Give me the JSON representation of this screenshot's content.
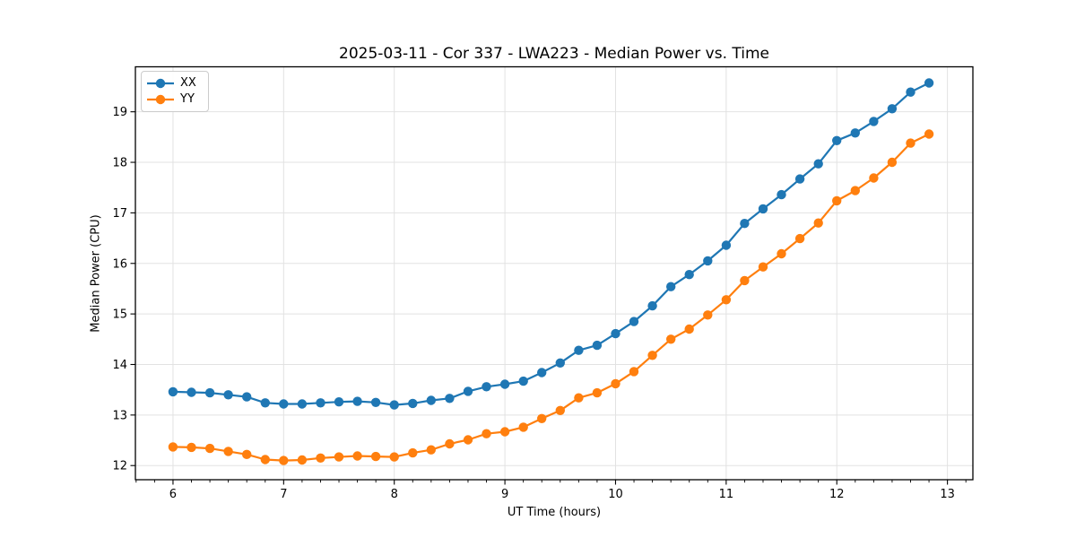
{
  "chart_data": {
    "type": "line",
    "title": "2025-03-11 - Cor 337 - LWA223 - Median Power vs. Time",
    "xlabel": "UT Time (hours)",
    "ylabel": "Median Power (CPU)",
    "xlim": [
      5.66,
      13.23
    ],
    "ylim": [
      11.72,
      19.89
    ],
    "x_ticks": [
      6,
      7,
      8,
      9,
      10,
      11,
      12,
      13
    ],
    "y_ticks": [
      12,
      13,
      14,
      15,
      16,
      17,
      18,
      19
    ],
    "x_minor_divisions_per_unit": 6,
    "grid": true,
    "legend_position": "upper left",
    "legend_labels": [
      "XX",
      "YY"
    ],
    "x": [
      6.0,
      6.1667,
      6.3333,
      6.5,
      6.6667,
      6.8333,
      7.0,
      7.1667,
      7.3333,
      7.5,
      7.6667,
      7.8333,
      8.0,
      8.1667,
      8.3333,
      8.5,
      8.6667,
      8.8333,
      9.0,
      9.1667,
      9.3333,
      9.5,
      9.6667,
      9.8333,
      10.0,
      10.1667,
      10.3333,
      10.5,
      10.6667,
      10.8333,
      11.0,
      11.1667,
      11.3333,
      11.5,
      11.6667,
      11.8333,
      12.0,
      12.1667,
      12.3333,
      12.5,
      12.6667,
      12.8333
    ],
    "series": [
      {
        "name": "XX",
        "color": "#1f77b4",
        "values": [
          13.46,
          13.45,
          13.44,
          13.4,
          13.36,
          13.24,
          13.22,
          13.22,
          13.24,
          13.26,
          13.27,
          13.25,
          13.2,
          13.23,
          13.29,
          13.33,
          13.47,
          13.56,
          13.61,
          13.67,
          13.84,
          14.03,
          14.28,
          14.38,
          14.61,
          14.85,
          15.16,
          15.54,
          15.78,
          16.05,
          16.36,
          16.79,
          17.08,
          17.36,
          17.67,
          17.97,
          18.43,
          18.58,
          18.81,
          19.06,
          19.39,
          19.57
        ]
      },
      {
        "name": "YY",
        "color": "#ff7f0e",
        "values": [
          12.37,
          12.36,
          12.34,
          12.28,
          12.22,
          12.12,
          12.1,
          12.11,
          12.15,
          12.17,
          12.19,
          12.18,
          12.17,
          12.25,
          12.31,
          12.43,
          12.51,
          12.63,
          12.67,
          12.76,
          12.93,
          13.09,
          13.34,
          13.44,
          13.62,
          13.86,
          14.18,
          14.5,
          14.7,
          14.98,
          15.28,
          15.66,
          15.93,
          16.19,
          16.49,
          16.8,
          17.24,
          17.44,
          17.69,
          18.0,
          18.38,
          18.56
        ]
      }
    ]
  },
  "colors": {
    "background": "#ffffff",
    "grid": "#e2e2e2",
    "spine": "#000000",
    "tick": "#000000",
    "text": "#000000",
    "legend_border": "#cccccc"
  }
}
